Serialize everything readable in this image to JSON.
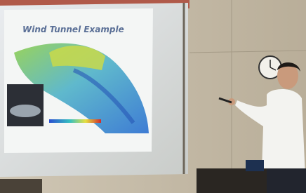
{
  "slide": {
    "title": "Wind Tunnel Example"
  }
}
